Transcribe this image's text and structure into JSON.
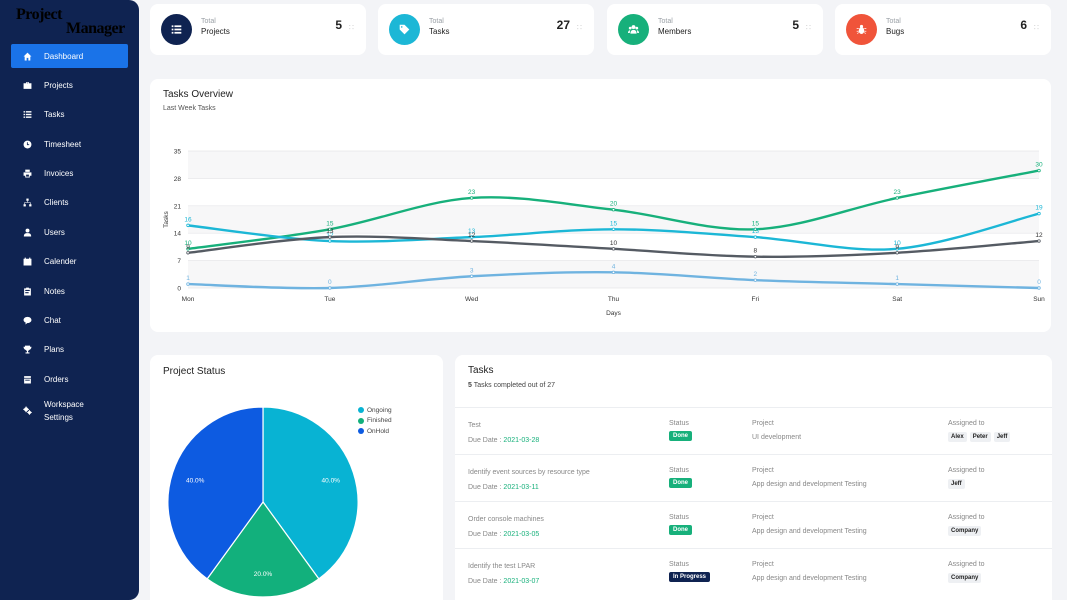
{
  "logo": {
    "line1": "Project",
    "line2": "Manager"
  },
  "sidebar": {
    "items": [
      {
        "label": "Dashboard",
        "icon": "home-icon",
        "active": true
      },
      {
        "label": "Projects",
        "icon": "briefcase-icon"
      },
      {
        "label": "Tasks",
        "icon": "list-icon"
      },
      {
        "label": "Timesheet",
        "icon": "clock-icon"
      },
      {
        "label": "Invoices",
        "icon": "printer-icon"
      },
      {
        "label": "Clients",
        "icon": "sitemap-icon"
      },
      {
        "label": "Users",
        "icon": "user-icon"
      },
      {
        "label": "Calender",
        "icon": "calendar-icon"
      },
      {
        "label": "Notes",
        "icon": "clipboard-icon"
      },
      {
        "label": "Chat",
        "icon": "chat-icon"
      },
      {
        "label": "Plans",
        "icon": "trophy-icon"
      },
      {
        "label": "Orders",
        "icon": "receipt-icon"
      },
      {
        "label": "Workspace Settings",
        "line1": "Workspace",
        "line2": "Settings",
        "icon": "cogs-icon"
      }
    ]
  },
  "stats": [
    {
      "label_top": "Total",
      "label": "Projects",
      "value": "5",
      "color": "#0f2351",
      "icon": "tasks-icon"
    },
    {
      "label_top": "Total",
      "label": "Tasks",
      "value": "27",
      "color": "#1cb7d6",
      "icon": "tag-icon"
    },
    {
      "label_top": "Total",
      "label": "Members",
      "value": "5",
      "color": "#17b07b",
      "icon": "users-icon"
    },
    {
      "label_top": "Total",
      "label": "Bugs",
      "value": "6",
      "color": "#f0543a",
      "icon": "bug-icon"
    }
  ],
  "overview": {
    "title": "Tasks Overview",
    "subtitle": "Last Week Tasks"
  },
  "chart_data": {
    "type": "line",
    "x": [
      "Mon",
      "Tue",
      "Wed",
      "Thu",
      "Fri",
      "Sat",
      "Sun"
    ],
    "xlabel": "Days",
    "ylabel": "Tasks",
    "ylim": [
      0,
      35
    ],
    "yticks": [
      0,
      7,
      14,
      21,
      28,
      35
    ],
    "grid": true,
    "legend": "none",
    "series": [
      {
        "values": [
          10,
          15,
          23,
          20,
          15,
          23,
          30
        ],
        "color": "#17b07b"
      },
      {
        "values": [
          16,
          12,
          13,
          15,
          13,
          10,
          19
        ],
        "color": "#1cb7d6"
      },
      {
        "values": [
          9,
          13,
          12,
          10,
          8,
          9,
          12
        ],
        "color": "#555b63"
      },
      {
        "values": [
          1,
          0,
          3,
          4,
          2,
          1,
          0
        ],
        "color": "#6fb3e0"
      }
    ]
  },
  "status": {
    "title": "Project Status",
    "legend": [
      {
        "label": "Ongoing",
        "color": "#08b3d3"
      },
      {
        "label": "Finished",
        "color": "#12b07c"
      },
      {
        "label": "OnHold",
        "color": "#0d5be1"
      }
    ],
    "slices": [
      {
        "label": "40.0%",
        "value": 40,
        "color": "#08b3d3"
      },
      {
        "label": "20.0%",
        "value": 20,
        "color": "#12b07c"
      },
      {
        "label": "40.0%",
        "value": 40,
        "color": "#0d5be1"
      }
    ]
  },
  "tasks": {
    "title": "Tasks",
    "count": "5",
    "summary_rest": " Tasks completed out of 27",
    "rows": [
      {
        "name": "Test",
        "due_label": "Due Date : ",
        "due": "2021-03-28",
        "status_label": "Status",
        "status": "Done",
        "project_label": "Project",
        "project": "UI development",
        "assigned_label": "Assigned to",
        "assigned": [
          "Alex",
          "Peter",
          "Jeff"
        ]
      },
      {
        "name": "Identify event sources by resource type",
        "due_label": "Due Date : ",
        "due": "2021-03-11",
        "status_label": "Status",
        "status": "Done",
        "project_label": "Project",
        "project": "App design and development Testing",
        "assigned_label": "Assigned to",
        "assigned": [
          "Jeff"
        ]
      },
      {
        "name": "Order console machines",
        "due_label": "Due Date : ",
        "due": "2021-03-05",
        "status_label": "Status",
        "status": "Done",
        "project_label": "Project",
        "project": "App design and development Testing",
        "assigned_label": "Assigned to",
        "assigned": [
          "Company"
        ]
      },
      {
        "name": "Identify the test LPAR",
        "due_label": "Due Date : ",
        "due": "2021-03-07",
        "status_label": "Status",
        "status": "In Progress",
        "project_label": "Project",
        "project": "App design and development Testing",
        "assigned_label": "Assigned to",
        "assigned": [
          "Company"
        ]
      }
    ]
  }
}
